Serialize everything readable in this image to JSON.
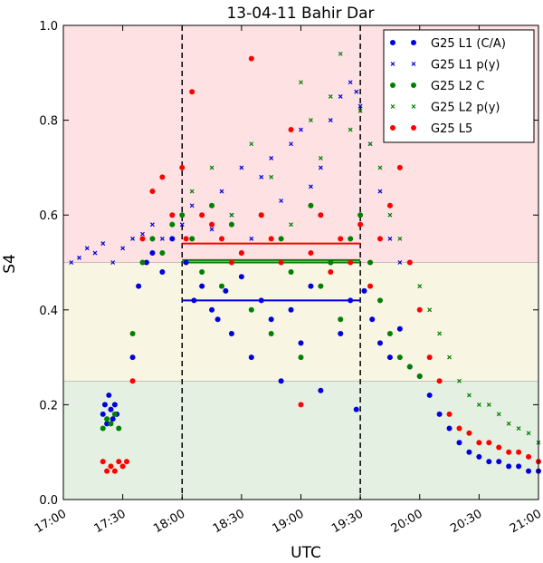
{
  "chart_data": {
    "type": "scatter",
    "title": "13-04-11 Bahir Dar",
    "xlabel": "UTC",
    "ylabel": "S4",
    "xlim": [
      "17:00",
      "21:00"
    ],
    "ylim": [
      0.0,
      1.0
    ],
    "x_ticks": [
      "17:00",
      "17:30",
      "18:00",
      "18:30",
      "19:00",
      "19:30",
      "20:00",
      "20:30",
      "21:00"
    ],
    "y_ticks": [
      "0.0",
      "0.2",
      "0.4",
      "0.6",
      "0.8",
      "1.0"
    ],
    "grid": false,
    "legend_position": "top-right",
    "bands": [
      {
        "from": 0.0,
        "to": 0.25,
        "color": "#e4f1e2"
      },
      {
        "from": 0.25,
        "to": 0.5,
        "color": "#f8f5e2"
      },
      {
        "from": 0.5,
        "to": 1.0,
        "color": "#fde1e3"
      }
    ],
    "vlines": [
      "18:00",
      "19:30"
    ],
    "series": [
      {
        "name": "G25 L1 (C/A)",
        "marker": "dot",
        "color": "#0000dd",
        "mean": 0.42,
        "x": [
          "17:20",
          "17:21",
          "17:22",
          "17:23",
          "17:24",
          "17:25",
          "17:26",
          "17:27",
          "17:35",
          "17:38",
          "17:42",
          "17:45",
          "17:50",
          "17:55",
          "18:02",
          "18:06",
          "18:10",
          "18:15",
          "18:18",
          "18:22",
          "18:25",
          "18:30",
          "18:35",
          "18:40",
          "18:45",
          "18:50",
          "18:55",
          "19:00",
          "19:05",
          "19:10",
          "19:15",
          "19:20",
          "19:25",
          "19:28",
          "19:32",
          "19:36",
          "19:40",
          "19:45",
          "19:50",
          "19:55",
          "20:00",
          "20:05",
          "20:10",
          "20:15",
          "20:20",
          "20:25",
          "20:30",
          "20:35",
          "20:40",
          "20:45",
          "20:50",
          "20:55",
          "21:00"
        ],
        "y": [
          0.18,
          0.2,
          0.16,
          0.22,
          0.19,
          0.17,
          0.2,
          0.18,
          0.3,
          0.45,
          0.5,
          0.52,
          0.48,
          0.55,
          0.5,
          0.42,
          0.45,
          0.4,
          0.38,
          0.44,
          0.35,
          0.47,
          0.3,
          0.42,
          0.38,
          0.25,
          0.4,
          0.33,
          0.45,
          0.23,
          0.5,
          0.35,
          0.42,
          0.19,
          0.44,
          0.38,
          0.33,
          0.3,
          0.36,
          0.28,
          0.26,
          0.22,
          0.18,
          0.15,
          0.12,
          0.1,
          0.09,
          0.08,
          0.08,
          0.07,
          0.07,
          0.06,
          0.06
        ]
      },
      {
        "name": "G25 L1 p(y)",
        "marker": "x",
        "color": "#0000dd",
        "mean": 0.5,
        "x": [
          "17:04",
          "17:08",
          "17:12",
          "17:16",
          "17:20",
          "17:25",
          "17:30",
          "17:35",
          "17:40",
          "17:45",
          "17:50",
          "17:55",
          "18:00",
          "18:05",
          "18:10",
          "18:15",
          "18:20",
          "18:25",
          "18:30",
          "18:35",
          "18:40",
          "18:45",
          "18:50",
          "18:55",
          "19:00",
          "19:05",
          "19:10",
          "19:15",
          "19:20",
          "19:25",
          "19:28",
          "19:30",
          "19:35",
          "19:40",
          "19:45",
          "19:50"
        ],
        "y": [
          0.5,
          0.51,
          0.53,
          0.52,
          0.54,
          0.5,
          0.53,
          0.55,
          0.56,
          0.58,
          0.55,
          0.6,
          0.58,
          0.62,
          0.6,
          0.57,
          0.65,
          0.6,
          0.7,
          0.55,
          0.68,
          0.72,
          0.63,
          0.75,
          0.78,
          0.66,
          0.7,
          0.8,
          0.85,
          0.88,
          0.86,
          0.83,
          0.75,
          0.65,
          0.55,
          0.5
        ]
      },
      {
        "name": "G25 L2 C",
        "marker": "dot",
        "color": "#008000",
        "mean": 0.505,
        "x": [
          "17:20",
          "17:22",
          "17:24",
          "17:26",
          "17:28",
          "17:35",
          "17:40",
          "17:45",
          "17:50",
          "17:55",
          "18:00",
          "18:05",
          "18:10",
          "18:15",
          "18:20",
          "18:25",
          "18:30",
          "18:35",
          "18:40",
          "18:45",
          "18:50",
          "18:55",
          "19:00",
          "19:05",
          "19:10",
          "19:15",
          "19:20",
          "19:25",
          "19:30",
          "19:35",
          "19:40",
          "19:45",
          "19:50",
          "19:55",
          "20:00"
        ],
        "y": [
          0.15,
          0.17,
          0.16,
          0.18,
          0.15,
          0.35,
          0.5,
          0.55,
          0.52,
          0.58,
          0.6,
          0.55,
          0.48,
          0.62,
          0.45,
          0.58,
          0.52,
          0.4,
          0.6,
          0.35,
          0.55,
          0.48,
          0.3,
          0.62,
          0.45,
          0.5,
          0.38,
          0.55,
          0.6,
          0.5,
          0.42,
          0.35,
          0.3,
          0.28,
          0.26
        ]
      },
      {
        "name": "G25 L2 p(y)",
        "marker": "x",
        "color": "#008000",
        "mean": 0.5,
        "x": [
          "18:05",
          "18:15",
          "18:25",
          "18:35",
          "18:45",
          "18:55",
          "19:00",
          "19:05",
          "19:10",
          "19:15",
          "19:20",
          "19:25",
          "19:30",
          "19:35",
          "19:40",
          "19:45",
          "19:50",
          "19:55",
          "20:00",
          "20:05",
          "20:10",
          "20:15",
          "20:20",
          "20:25",
          "20:30",
          "20:35",
          "20:40",
          "20:45",
          "20:50",
          "20:55",
          "21:00"
        ],
        "y": [
          0.65,
          0.7,
          0.6,
          0.75,
          0.68,
          0.58,
          0.88,
          0.8,
          0.72,
          0.85,
          0.94,
          0.78,
          0.82,
          0.75,
          0.7,
          0.6,
          0.55,
          0.5,
          0.45,
          0.4,
          0.35,
          0.3,
          0.25,
          0.22,
          0.2,
          0.2,
          0.18,
          0.16,
          0.15,
          0.14,
          0.12
        ]
      },
      {
        "name": "G25 L5",
        "marker": "dot",
        "color": "#ff0000",
        "mean": 0.54,
        "x": [
          "17:20",
          "17:22",
          "17:24",
          "17:26",
          "17:28",
          "17:30",
          "17:32",
          "17:35",
          "17:40",
          "17:45",
          "17:50",
          "17:55",
          "18:00",
          "18:02",
          "18:05",
          "18:10",
          "18:15",
          "18:20",
          "18:25",
          "18:30",
          "18:35",
          "18:40",
          "18:45",
          "18:50",
          "18:55",
          "19:00",
          "19:05",
          "19:10",
          "19:15",
          "19:20",
          "19:25",
          "19:30",
          "19:35",
          "19:40",
          "19:45",
          "19:50",
          "19:55",
          "20:00",
          "20:05",
          "20:10",
          "20:15",
          "20:20",
          "20:25",
          "20:30",
          "20:35",
          "20:40",
          "20:45",
          "20:50",
          "20:55",
          "21:00"
        ],
        "y": [
          0.08,
          0.06,
          0.07,
          0.06,
          0.08,
          0.07,
          0.08,
          0.25,
          0.55,
          0.65,
          0.68,
          0.6,
          0.7,
          0.55,
          0.86,
          0.6,
          0.58,
          0.55,
          0.5,
          0.52,
          0.93,
          0.6,
          0.55,
          0.5,
          0.78,
          0.2,
          0.52,
          0.6,
          0.48,
          0.55,
          0.5,
          0.58,
          0.45,
          0.55,
          0.62,
          0.7,
          0.5,
          0.4,
          0.3,
          0.25,
          0.18,
          0.15,
          0.14,
          0.12,
          0.12,
          0.11,
          0.1,
          0.1,
          0.09,
          0.08
        ]
      }
    ]
  }
}
